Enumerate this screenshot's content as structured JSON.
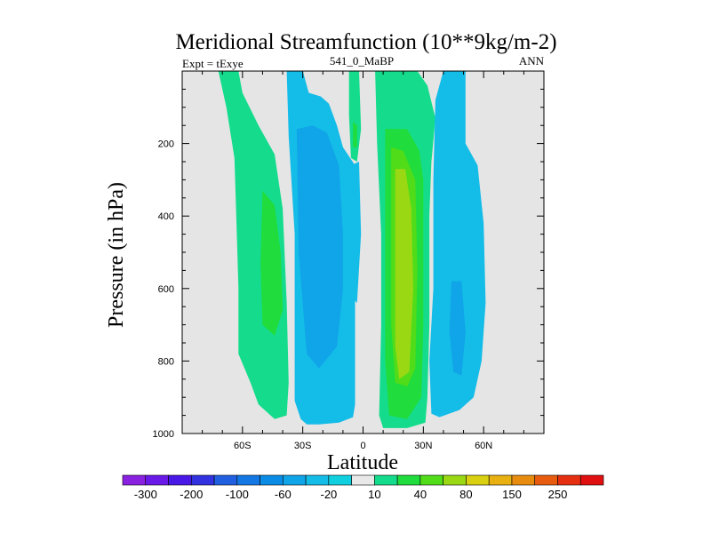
{
  "chart_data": {
    "type": "contour",
    "title": "Meridional Streamfunction (10**9kg/m-2)",
    "left_label": "Expt = tExye",
    "center_label": "541_0_MaBP",
    "right_label": "ANN",
    "xlabel": "Latitude",
    "ylabel": "Pressure (in hPa)",
    "xlim": [
      -90,
      90
    ],
    "ylim": [
      1000,
      0
    ],
    "xticks": [
      {
        "value": -60,
        "label": "60S"
      },
      {
        "value": -30,
        "label": "30S"
      },
      {
        "value": 0,
        "label": "0"
      },
      {
        "value": 30,
        "label": "30N"
      },
      {
        "value": 60,
        "label": "60N"
      }
    ],
    "yticks": [
      {
        "value": 200,
        "label": "200"
      },
      {
        "value": 400,
        "label": "400"
      },
      {
        "value": 600,
        "label": "600"
      },
      {
        "value": 800,
        "label": "800"
      },
      {
        "value": 1000,
        "label": "1000"
      }
    ],
    "background_color": "#e5e5e5",
    "colorbar": {
      "levels": [
        -300,
        -250,
        -200,
        -150,
        -100,
        -80,
        -60,
        -40,
        -20,
        -10,
        10,
        20,
        40,
        60,
        80,
        100,
        150,
        200,
        250,
        300
      ],
      "labels": [
        "-300",
        "-200",
        "-100",
        "-60",
        "-20",
        "10",
        "40",
        "80",
        "150",
        "250"
      ],
      "colors": [
        "#8a20e0",
        "#6a1ae8",
        "#4a18e6",
        "#3232e0",
        "#2060e0",
        "#1478e4",
        "#0a8ce6",
        "#10a4e8",
        "#14bce8",
        "#10d0e0",
        "#e8e8e8",
        "#14dc8c",
        "#20dc3c",
        "#50dc18",
        "#9ad814",
        "#d8d010",
        "#e8b010",
        "#e88c10",
        "#e85c10",
        "#e43010",
        "#e01010"
      ]
    },
    "regions": [
      {
        "name": "sh-outer-positive",
        "level": 10,
        "color": "#14dc8c"
      },
      {
        "name": "sh-outer-positive-core",
        "level": 20,
        "color": "#20dc3c"
      },
      {
        "name": "sh-negative-cell",
        "level": -10,
        "color": "#14bce8"
      },
      {
        "name": "sh-negative-cell-core",
        "level": -20,
        "color": "#10a4e8"
      },
      {
        "name": "equatorial-positive",
        "level": 10,
        "color": "#14dc8c"
      },
      {
        "name": "equatorial-positive-core",
        "level": 20,
        "color": "#20dc3c"
      },
      {
        "name": "equatorial-negative-strip",
        "level": -10,
        "color": "#14bce8"
      },
      {
        "name": "nh-positive-cell",
        "level": 10,
        "color": "#14dc8c"
      },
      {
        "name": "nh-positive-cell-band",
        "level": 20,
        "color": "#20dc3c"
      },
      {
        "name": "nh-positive-cell-core",
        "level": 40,
        "color": "#50dc18"
      },
      {
        "name": "nh-positive-cell-max",
        "level": 60,
        "color": "#9ad814"
      },
      {
        "name": "nh-negative-cell",
        "level": -10,
        "color": "#14bce8"
      },
      {
        "name": "nh-negative-cell-core",
        "level": -20,
        "color": "#10a4e8"
      }
    ]
  }
}
